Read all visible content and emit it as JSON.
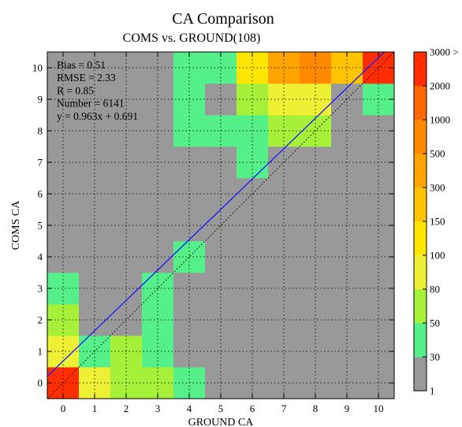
{
  "chart_data": {
    "type": "heatmap",
    "title": "CA Comparison",
    "subtitle": "COMS vs. GROUND(108)",
    "xlabel": "GROUND   CA",
    "ylabel": "COMS   CA",
    "x_ticks": [
      "0",
      "1",
      "2",
      "3",
      "4",
      "5",
      "6",
      "7",
      "8",
      "9",
      "10"
    ],
    "y_ticks": [
      "0",
      "1",
      "2",
      "3",
      "4",
      "5",
      "6",
      "7",
      "8",
      "9",
      "10"
    ],
    "xlim": [
      -0.5,
      10.5
    ],
    "ylim": [
      -0.5,
      10.5
    ],
    "grid": true,
    "stats": [
      {
        "label": "Bias = 0.51",
        "color": "#000000"
      },
      {
        "label": "RMSE = 2.33",
        "color": "#000000"
      },
      {
        "label": "R = 0.85",
        "color": "#000000"
      },
      {
        "label": "Number = 6141",
        "color": "#000000"
      },
      {
        "label": "y = 0.963x + 0.691",
        "color": "#1a1aff"
      }
    ],
    "regression": {
      "slope": 0.963,
      "intercept": 0.691,
      "color": "#1a1aff"
    },
    "identity_line": {
      "style": "dotted",
      "color": "#000000"
    },
    "colorbar": {
      "labels": [
        "1",
        "30",
        "50",
        "80",
        "100",
        "150",
        "300",
        "500",
        "1000",
        "2000",
        "3000 >"
      ],
      "colors": [
        "#999999",
        "#55f08a",
        "#a6f03a",
        "#eef035",
        "#ffe600",
        "#ffc300",
        "#ffa400",
        "#ff8a00",
        "#ff6800",
        "#ff2e00"
      ]
    },
    "background_color": "#ebebeb",
    "cells": [
      [
        0,
        0,
        9
      ],
      [
        1,
        0,
        3
      ],
      [
        2,
        0,
        2
      ],
      [
        3,
        0,
        2
      ],
      [
        4,
        0,
        1
      ],
      [
        5,
        0,
        0
      ],
      [
        6,
        0,
        0
      ],
      [
        7,
        0,
        0
      ],
      [
        8,
        0,
        0
      ],
      [
        9,
        0,
        0
      ],
      [
        10,
        0,
        0
      ],
      [
        0,
        1,
        3
      ],
      [
        1,
        1,
        1
      ],
      [
        2,
        1,
        2
      ],
      [
        3,
        1,
        1
      ],
      [
        4,
        1,
        0
      ],
      [
        5,
        1,
        0
      ],
      [
        6,
        1,
        0
      ],
      [
        7,
        1,
        0
      ],
      [
        8,
        1,
        0
      ],
      [
        9,
        1,
        0
      ],
      [
        10,
        1,
        0
      ],
      [
        0,
        2,
        2
      ],
      [
        1,
        2,
        0
      ],
      [
        2,
        2,
        0
      ],
      [
        3,
        2,
        1
      ],
      [
        4,
        2,
        0
      ],
      [
        5,
        2,
        0
      ],
      [
        6,
        2,
        0
      ],
      [
        7,
        2,
        0
      ],
      [
        8,
        2,
        0
      ],
      [
        9,
        2,
        0
      ],
      [
        10,
        2,
        0
      ],
      [
        0,
        3,
        1
      ],
      [
        1,
        3,
        0
      ],
      [
        2,
        3,
        0
      ],
      [
        3,
        3,
        1
      ],
      [
        4,
        3,
        0
      ],
      [
        5,
        3,
        0
      ],
      [
        6,
        3,
        0
      ],
      [
        7,
        3,
        0
      ],
      [
        8,
        3,
        0
      ],
      [
        9,
        3,
        0
      ],
      [
        10,
        3,
        0
      ],
      [
        0,
        4,
        0
      ],
      [
        1,
        4,
        0
      ],
      [
        2,
        4,
        0
      ],
      [
        3,
        4,
        0
      ],
      [
        4,
        4,
        1
      ],
      [
        5,
        4,
        0
      ],
      [
        6,
        4,
        0
      ],
      [
        7,
        4,
        0
      ],
      [
        8,
        4,
        0
      ],
      [
        9,
        4,
        0
      ],
      [
        10,
        4,
        0
      ],
      [
        0,
        5,
        0
      ],
      [
        1,
        5,
        0
      ],
      [
        2,
        5,
        0
      ],
      [
        3,
        5,
        0
      ],
      [
        4,
        5,
        0
      ],
      [
        5,
        5,
        0
      ],
      [
        6,
        5,
        0
      ],
      [
        7,
        5,
        0
      ],
      [
        8,
        5,
        0
      ],
      [
        9,
        5,
        0
      ],
      [
        10,
        5,
        0
      ],
      [
        0,
        6,
        0
      ],
      [
        1,
        6,
        0
      ],
      [
        2,
        6,
        0
      ],
      [
        3,
        6,
        0
      ],
      [
        4,
        6,
        0
      ],
      [
        5,
        6,
        0
      ],
      [
        6,
        6,
        0
      ],
      [
        7,
        6,
        0
      ],
      [
        8,
        6,
        0
      ],
      [
        9,
        6,
        0
      ],
      [
        10,
        6,
        0
      ],
      [
        0,
        7,
        0
      ],
      [
        1,
        7,
        0
      ],
      [
        2,
        7,
        0
      ],
      [
        3,
        7,
        0
      ],
      [
        4,
        7,
        0
      ],
      [
        5,
        7,
        0
      ],
      [
        6,
        7,
        1
      ],
      [
        7,
        7,
        0
      ],
      [
        8,
        7,
        0
      ],
      [
        9,
        7,
        0
      ],
      [
        10,
        7,
        0
      ],
      [
        0,
        8,
        0
      ],
      [
        1,
        8,
        0
      ],
      [
        2,
        8,
        0
      ],
      [
        3,
        8,
        0
      ],
      [
        4,
        8,
        1
      ],
      [
        5,
        8,
        1
      ],
      [
        6,
        8,
        1
      ],
      [
        7,
        8,
        2
      ],
      [
        8,
        8,
        2
      ],
      [
        9,
        8,
        0
      ],
      [
        10,
        8,
        0
      ],
      [
        0,
        9,
        0
      ],
      [
        1,
        9,
        0
      ],
      [
        2,
        9,
        0
      ],
      [
        3,
        9,
        0
      ],
      [
        4,
        9,
        1
      ],
      [
        5,
        9,
        0
      ],
      [
        6,
        9,
        2
      ],
      [
        7,
        9,
        3
      ],
      [
        8,
        9,
        3
      ],
      [
        9,
        9,
        0
      ],
      [
        10,
        9,
        1
      ],
      [
        0,
        10,
        0
      ],
      [
        1,
        10,
        0
      ],
      [
        2,
        10,
        0
      ],
      [
        3,
        10,
        0
      ],
      [
        4,
        10,
        1
      ],
      [
        5,
        10,
        1
      ],
      [
        6,
        10,
        4
      ],
      [
        7,
        10,
        6
      ],
      [
        8,
        10,
        7
      ],
      [
        9,
        10,
        5
      ],
      [
        10,
        10,
        9
      ]
    ]
  }
}
